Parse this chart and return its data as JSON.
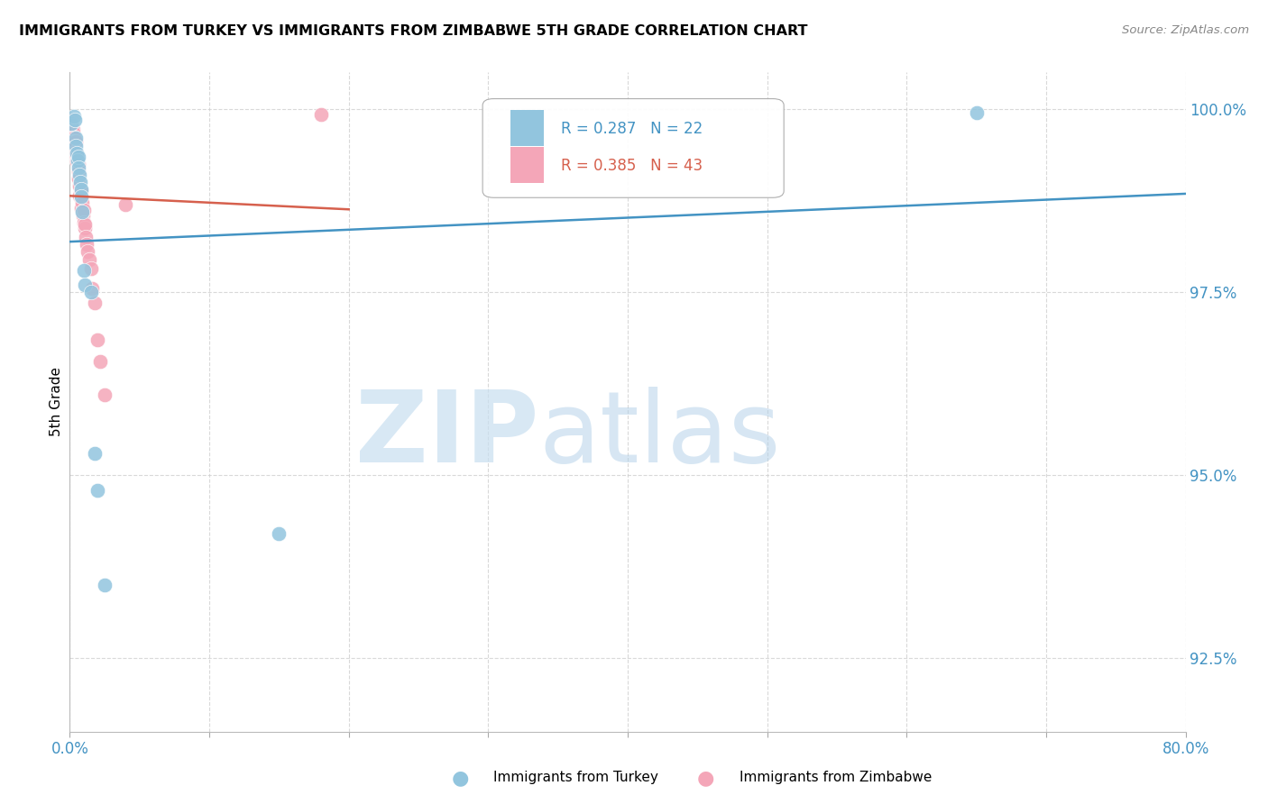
{
  "title": "IMMIGRANTS FROM TURKEY VS IMMIGRANTS FROM ZIMBABWE 5TH GRADE CORRELATION CHART",
  "source": "Source: ZipAtlas.com",
  "ylabel": "5th Grade",
  "ytick_labels": [
    "100.0%",
    "97.5%",
    "95.0%",
    "92.5%"
  ],
  "ytick_vals": [
    100.0,
    97.5,
    95.0,
    92.5
  ],
  "legend_blue": {
    "R": 0.287,
    "N": 22,
    "label": "Immigrants from Turkey"
  },
  "legend_pink": {
    "R": 0.385,
    "N": 43,
    "label": "Immigrants from Zimbabwe"
  },
  "blue_color": "#92c5de",
  "pink_color": "#f4a6b8",
  "blue_line_color": "#4393c3",
  "pink_line_color": "#d6604d",
  "axis_tick_color": "#4393c3",
  "grid_color": "#d0d0d0",
  "background_color": "#ffffff",
  "blue_points_x": [
    0.1,
    0.3,
    0.35,
    0.4,
    0.45,
    0.5,
    0.55,
    0.6,
    0.65,
    0.7,
    0.75,
    0.8,
    0.85,
    0.9,
    1.0,
    1.05,
    1.5,
    1.8,
    2.0,
    2.5,
    65.0,
    15.0
  ],
  "blue_points_y": [
    99.8,
    99.9,
    99.85,
    99.6,
    99.5,
    99.4,
    99.3,
    99.35,
    99.2,
    99.1,
    99.0,
    98.9,
    98.8,
    98.6,
    97.8,
    97.6,
    97.5,
    95.3,
    94.8,
    93.5,
    99.95,
    94.2
  ],
  "pink_points_x": [
    0.1,
    0.12,
    0.15,
    0.2,
    0.22,
    0.25,
    0.28,
    0.3,
    0.32,
    0.35,
    0.38,
    0.4,
    0.42,
    0.45,
    0.48,
    0.5,
    0.52,
    0.6,
    0.62,
    0.65,
    0.7,
    0.72,
    0.8,
    0.82,
    0.85,
    0.9,
    0.92,
    1.0,
    1.02,
    1.05,
    1.1,
    1.15,
    1.2,
    1.3,
    1.4,
    1.5,
    1.6,
    1.8,
    2.0,
    2.2,
    2.5,
    18.0,
    4.0
  ],
  "pink_points_y": [
    99.85,
    99.8,
    99.75,
    99.78,
    99.72,
    99.68,
    99.62,
    99.6,
    99.55,
    99.5,
    99.45,
    99.55,
    99.42,
    99.38,
    99.3,
    99.35,
    99.28,
    99.25,
    99.15,
    99.05,
    98.95,
    98.82,
    98.88,
    98.78,
    98.65,
    98.72,
    98.55,
    98.62,
    98.45,
    98.38,
    98.42,
    98.25,
    98.15,
    98.05,
    97.95,
    97.82,
    97.55,
    97.35,
    96.85,
    96.55,
    96.1,
    99.92,
    98.7
  ],
  "xlim": [
    0.0,
    80.0
  ],
  "ylim": [
    91.5,
    100.5
  ],
  "figsize": [
    14.06,
    8.92
  ],
  "dpi": 100
}
